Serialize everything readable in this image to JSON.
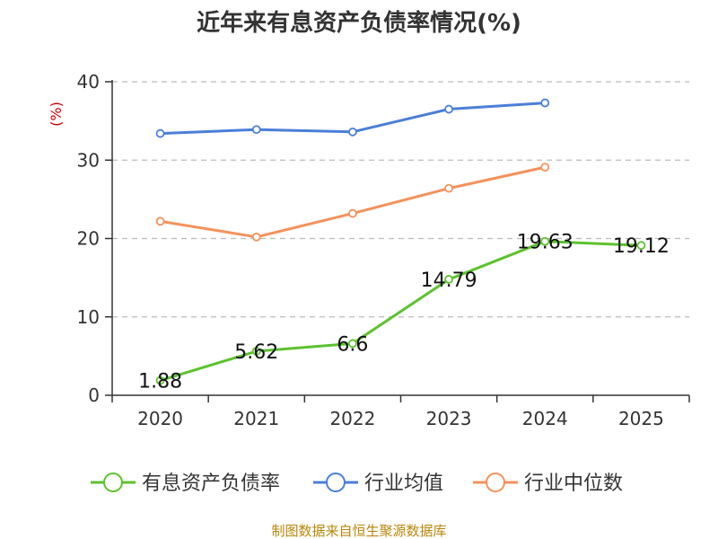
{
  "chart_data": {
    "type": "line",
    "title": "近年来有息资产负债率情况(%)",
    "xlabel": "",
    "ylabel": "(%)",
    "categories": [
      "2020",
      "2021",
      "2022",
      "2023",
      "2024",
      "2025"
    ],
    "ylim": [
      0,
      40
    ],
    "yticks": [
      0,
      10,
      20,
      30,
      40
    ],
    "grid": true,
    "legend_position": "bottom",
    "series": [
      {
        "name": "有息资产负债率",
        "color": "#5cc22e",
        "values": [
          1.88,
          5.62,
          6.6,
          14.79,
          19.63,
          19.12
        ],
        "labels": [
          "1.88",
          "5.62",
          "6.6",
          "14.79",
          "19.63",
          "19.12"
        ]
      },
      {
        "name": "行业均值",
        "color": "#4a7fd8",
        "values": [
          33.4,
          33.9,
          33.6,
          36.5,
          37.3,
          null
        ]
      },
      {
        "name": "行业中位数",
        "color": "#f4915a",
        "values": [
          22.2,
          20.2,
          23.2,
          26.4,
          29.1,
          null
        ]
      }
    ],
    "source": "制图数据来自恒生聚源数据库"
  }
}
